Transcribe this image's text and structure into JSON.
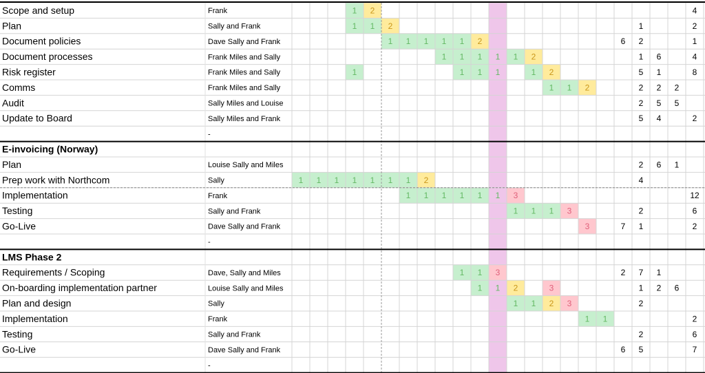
{
  "highlight_column": 11,
  "highlight_fill": "#efc6ea",
  "palette": {
    "g": {
      "fill": "#c6efce",
      "ink": "#62b862"
    },
    "y": {
      "fill": "#ffeb9c",
      "ink": "#c9961a"
    },
    "r": {
      "fill": "#ffc7ce",
      "ink": "#e0607a"
    }
  },
  "sections": [
    {
      "title": null,
      "rows": [
        {
          "task": "Scope and setup",
          "people": "Frank",
          "cells": [
            [
              3,
              "1",
              "g"
            ],
            [
              4,
              "2",
              "y"
            ],
            [
              22,
              "4"
            ]
          ]
        },
        {
          "task": "Plan",
          "people": "Sally and Frank",
          "cells": [
            [
              3,
              "1",
              "g"
            ],
            [
              4,
              "1",
              "g"
            ],
            [
              5,
              "2",
              "y"
            ],
            [
              19,
              "1"
            ],
            [
              22,
              "2"
            ]
          ]
        },
        {
          "task": "Document policies",
          "people": "Dave Sally and Frank",
          "cells": [
            [
              5,
              "1",
              "g"
            ],
            [
              6,
              "1",
              "g"
            ],
            [
              7,
              "1",
              "g"
            ],
            [
              8,
              "1",
              "g"
            ],
            [
              9,
              "1",
              "g"
            ],
            [
              10,
              "2",
              "y"
            ],
            [
              18,
              "6"
            ],
            [
              19,
              "2"
            ],
            [
              22,
              "1"
            ]
          ]
        },
        {
          "task": "Document processes",
          "people": "Frank Miles and Sally",
          "cells": [
            [
              8,
              "1",
              "g"
            ],
            [
              9,
              "1",
              "g"
            ],
            [
              10,
              "1",
              "g"
            ],
            [
              11,
              "1",
              "g"
            ],
            [
              12,
              "1",
              "g"
            ],
            [
              13,
              "2",
              "y"
            ],
            [
              19,
              "1"
            ],
            [
              20,
              "6"
            ],
            [
              22,
              "4"
            ]
          ]
        },
        {
          "task": "Risk register",
          "people": "Frank Miles and Sally",
          "cells": [
            [
              3,
              "1",
              "g"
            ],
            [
              9,
              "1",
              "g"
            ],
            [
              10,
              "1",
              "g"
            ],
            [
              11,
              "1",
              "g"
            ],
            [
              13,
              "1",
              "g"
            ],
            [
              14,
              "2",
              "y"
            ],
            [
              19,
              "5"
            ],
            [
              20,
              "1"
            ],
            [
              22,
              "8"
            ]
          ]
        },
        {
          "task": "Comms",
          "people": "Frank Miles and Sally",
          "cells": [
            [
              14,
              "1",
              "g"
            ],
            [
              15,
              "1",
              "g"
            ],
            [
              16,
              "2",
              "y"
            ],
            [
              19,
              "2"
            ],
            [
              20,
              "2"
            ],
            [
              21,
              "2"
            ]
          ]
        },
        {
          "task": "Audit",
          "people": "Sally Miles and Louise",
          "cells": [
            [
              19,
              "2"
            ],
            [
              20,
              "5"
            ],
            [
              21,
              "5"
            ]
          ]
        },
        {
          "task": "Update to Board",
          "people": "Sally Miles and Frank",
          "cells": [
            [
              19,
              "5"
            ],
            [
              20,
              "4"
            ],
            [
              22,
              "2"
            ]
          ]
        },
        {
          "task": null,
          "people": "-",
          "cells": []
        }
      ]
    },
    {
      "title": "E-invoicing (Norway)",
      "rows": [
        {
          "task": "Plan",
          "people": "Louise Sally and Miles",
          "cells": [
            [
              19,
              "2"
            ],
            [
              20,
              "6"
            ],
            [
              21,
              "1"
            ]
          ]
        },
        {
          "task": "Prep work with Northcom",
          "people": "Sally",
          "cells": [
            [
              0,
              "1",
              "g"
            ],
            [
              1,
              "1",
              "g"
            ],
            [
              2,
              "1",
              "g"
            ],
            [
              3,
              "1",
              "g"
            ],
            [
              4,
              "1",
              "g"
            ],
            [
              5,
              "1",
              "g"
            ],
            [
              6,
              "1",
              "g"
            ],
            [
              7,
              "2",
              "y"
            ],
            [
              19,
              "4"
            ]
          ]
        },
        {
          "task": "Implementation",
          "people": "Frank",
          "cells": [
            [
              6,
              "1",
              "g"
            ],
            [
              7,
              "1",
              "g"
            ],
            [
              8,
              "1",
              "g"
            ],
            [
              9,
              "1",
              "g"
            ],
            [
              10,
              "1",
              "g"
            ],
            [
              11,
              "1",
              "g"
            ],
            [
              12,
              "3",
              "r"
            ],
            [
              22,
              "12"
            ]
          ]
        },
        {
          "task": "Testing",
          "people": "Sally and Frank",
          "cells": [
            [
              12,
              "1",
              "g"
            ],
            [
              13,
              "1",
              "g"
            ],
            [
              14,
              "1",
              "g"
            ],
            [
              15,
              "3",
              "r"
            ],
            [
              19,
              "2"
            ],
            [
              22,
              "6"
            ]
          ]
        },
        {
          "task": "Go-Live",
          "people": "Dave Sally and Frank",
          "cells": [
            [
              16,
              "3",
              "r"
            ],
            [
              18,
              "7"
            ],
            [
              19,
              "1"
            ],
            [
              22,
              "2"
            ]
          ]
        },
        {
          "task": null,
          "people": "-",
          "cells": []
        }
      ]
    },
    {
      "title": "LMS Phase 2",
      "rows": [
        {
          "task": "Requirements / Scoping",
          "people": "Dave, Sally and Miles",
          "cells": [
            [
              9,
              "1",
              "g"
            ],
            [
              10,
              "1",
              "g"
            ],
            [
              11,
              "3",
              "r"
            ],
            [
              18,
              "2"
            ],
            [
              19,
              "7"
            ],
            [
              20,
              "1"
            ]
          ]
        },
        {
          "task": "On-boarding implementation partner",
          "people": "Louise Sally and Miles",
          "cells": [
            [
              10,
              "1",
              "g"
            ],
            [
              11,
              "1",
              "g"
            ],
            [
              12,
              "2",
              "y"
            ],
            [
              14,
              "3",
              "r"
            ],
            [
              19,
              "1"
            ],
            [
              20,
              "2"
            ],
            [
              21,
              "6"
            ]
          ]
        },
        {
          "task": "Plan and design",
          "people": "Sally",
          "cells": [
            [
              12,
              "1",
              "g"
            ],
            [
              13,
              "1",
              "g"
            ],
            [
              14,
              "2",
              "y"
            ],
            [
              15,
              "3",
              "r"
            ],
            [
              19,
              "2"
            ]
          ]
        },
        {
          "task": "Implementation",
          "people": "Frank",
          "cells": [
            [
              16,
              "1",
              "g"
            ],
            [
              17,
              "1",
              "g"
            ],
            [
              22,
              "2"
            ]
          ]
        },
        {
          "task": "Testing",
          "people": "Sally and Frank",
          "cells": [
            [
              19,
              "2"
            ],
            [
              22,
              "6"
            ]
          ]
        },
        {
          "task": "Go-Live",
          "people": "Dave Sally and Frank",
          "cells": [
            [
              18,
              "6"
            ],
            [
              19,
              "5"
            ],
            [
              22,
              "7"
            ]
          ]
        },
        {
          "task": null,
          "people": "-",
          "cells": []
        }
      ]
    }
  ]
}
